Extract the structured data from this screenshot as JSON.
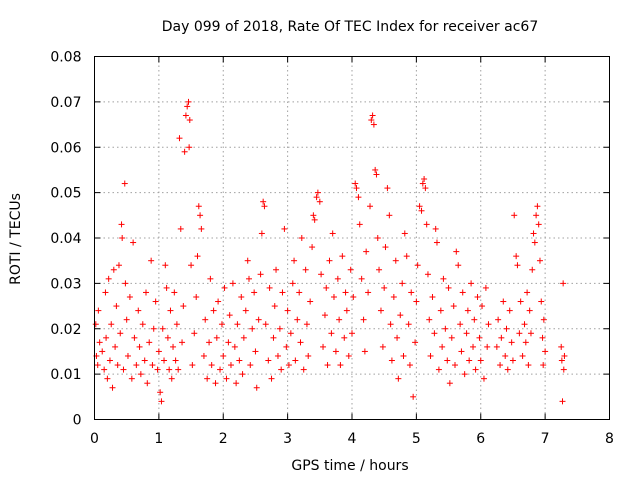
{
  "chart_data": {
    "type": "scatter",
    "title": "Day 099 of 2018, Rate Of TEC Index for receiver ac67",
    "xlabel": "GPS time / hours",
    "ylabel": "ROTI / TECUs",
    "xlim": [
      0,
      8
    ],
    "ylim": [
      0,
      0.08
    ],
    "xticks": [
      "0",
      "1",
      "2",
      "3",
      "4",
      "5",
      "6",
      "7",
      "8"
    ],
    "yticks": [
      "0",
      "0.01",
      "0.02",
      "0.03",
      "0.04",
      "0.05",
      "0.06",
      "0.07",
      "0.08"
    ],
    "grid": true,
    "marker": "+",
    "color": "#ff0000",
    "series": [
      {
        "name": "ROTI",
        "points": [
          [
            0.02,
            0.021
          ],
          [
            0.03,
            0.014
          ],
          [
            0.05,
            0.012
          ],
          [
            0.06,
            0.024
          ],
          [
            0.08,
            0.017
          ],
          [
            0.12,
            0.015
          ],
          [
            0.15,
            0.011
          ],
          [
            0.17,
            0.028
          ],
          [
            0.18,
            0.018
          ],
          [
            0.2,
            0.009
          ],
          [
            0.22,
            0.031
          ],
          [
            0.24,
            0.013
          ],
          [
            0.26,
            0.021
          ],
          [
            0.28,
            0.007
          ],
          [
            0.3,
            0.033
          ],
          [
            0.32,
            0.016
          ],
          [
            0.34,
            0.025
          ],
          [
            0.36,
            0.012
          ],
          [
            0.38,
            0.034
          ],
          [
            0.4,
            0.019
          ],
          [
            0.42,
            0.043
          ],
          [
            0.43,
            0.04
          ],
          [
            0.45,
            0.011
          ],
          [
            0.47,
            0.052
          ],
          [
            0.48,
            0.03
          ],
          [
            0.5,
            0.022
          ],
          [
            0.52,
            0.014
          ],
          [
            0.55,
            0.027
          ],
          [
            0.58,
            0.009
          ],
          [
            0.6,
            0.039
          ],
          [
            0.62,
            0.018
          ],
          [
            0.65,
            0.012
          ],
          [
            0.68,
            0.024
          ],
          [
            0.7,
            0.016
          ],
          [
            0.72,
            0.01
          ],
          [
            0.75,
            0.021
          ],
          [
            0.78,
            0.013
          ],
          [
            0.8,
            0.028
          ],
          [
            0.82,
            0.008
          ],
          [
            0.85,
            0.017
          ],
          [
            0.88,
            0.035
          ],
          [
            0.9,
            0.012
          ],
          [
            0.92,
            0.02
          ],
          [
            0.95,
            0.026
          ],
          [
            0.98,
            0.011
          ],
          [
            1.0,
            0.015
          ],
          [
            1.02,
            0.006
          ],
          [
            1.04,
            0.004
          ],
          [
            1.06,
            0.02
          ],
          [
            1.08,
            0.013
          ],
          [
            1.1,
            0.034
          ],
          [
            1.12,
            0.029
          ],
          [
            1.14,
            0.018
          ],
          [
            1.16,
            0.011
          ],
          [
            1.18,
            0.024
          ],
          [
            1.2,
            0.009
          ],
          [
            1.22,
            0.016
          ],
          [
            1.24,
            0.028
          ],
          [
            1.26,
            0.013
          ],
          [
            1.28,
            0.021
          ],
          [
            1.3,
            0.011
          ],
          [
            1.32,
            0.062
          ],
          [
            1.34,
            0.042
          ],
          [
            1.36,
            0.017
          ],
          [
            1.38,
            0.025
          ],
          [
            1.4,
            0.059
          ],
          [
            1.42,
            0.067
          ],
          [
            1.44,
            0.069
          ],
          [
            1.46,
            0.07
          ],
          [
            1.47,
            0.06
          ],
          [
            1.48,
            0.066
          ],
          [
            1.5,
            0.034
          ],
          [
            1.52,
            0.012
          ],
          [
            1.55,
            0.019
          ],
          [
            1.58,
            0.027
          ],
          [
            1.6,
            0.036
          ],
          [
            1.62,
            0.047
          ],
          [
            1.64,
            0.045
          ],
          [
            1.66,
            0.042
          ],
          [
            1.7,
            0.014
          ],
          [
            1.72,
            0.022
          ],
          [
            1.75,
            0.009
          ],
          [
            1.78,
            0.017
          ],
          [
            1.8,
            0.031
          ],
          [
            1.82,
            0.012
          ],
          [
            1.85,
            0.024
          ],
          [
            1.88,
            0.008
          ],
          [
            1.9,
            0.018
          ],
          [
            1.92,
            0.026
          ],
          [
            1.95,
            0.011
          ],
          [
            1.98,
            0.021
          ],
          [
            2.0,
            0.014
          ],
          [
            2.02,
            0.029
          ],
          [
            2.05,
            0.009
          ],
          [
            2.08,
            0.017
          ],
          [
            2.1,
            0.023
          ],
          [
            2.12,
            0.012
          ],
          [
            2.15,
            0.03
          ],
          [
            2.18,
            0.016
          ],
          [
            2.2,
            0.008
          ],
          [
            2.22,
            0.021
          ],
          [
            2.25,
            0.013
          ],
          [
            2.28,
            0.027
          ],
          [
            2.3,
            0.01
          ],
          [
            2.32,
            0.018
          ],
          [
            2.35,
            0.024
          ],
          [
            2.38,
            0.035
          ],
          [
            2.4,
            0.031
          ],
          [
            2.42,
            0.012
          ],
          [
            2.45,
            0.02
          ],
          [
            2.48,
            0.028
          ],
          [
            2.5,
            0.015
          ],
          [
            2.52,
            0.007
          ],
          [
            2.55,
            0.022
          ],
          [
            2.58,
            0.032
          ],
          [
            2.6,
            0.041
          ],
          [
            2.62,
            0.048
          ],
          [
            2.64,
            0.047
          ],
          [
            2.66,
            0.021
          ],
          [
            2.7,
            0.013
          ],
          [
            2.72,
            0.029
          ],
          [
            2.75,
            0.009
          ],
          [
            2.78,
            0.018
          ],
          [
            2.8,
            0.025
          ],
          [
            2.82,
            0.033
          ],
          [
            2.85,
            0.014
          ],
          [
            2.88,
            0.02
          ],
          [
            2.9,
            0.011
          ],
          [
            2.92,
            0.028
          ],
          [
            2.95,
            0.042
          ],
          [
            2.98,
            0.016
          ],
          [
            3.0,
            0.024
          ],
          [
            3.02,
            0.012
          ],
          [
            3.05,
            0.019
          ],
          [
            3.08,
            0.03
          ],
          [
            3.1,
            0.035
          ],
          [
            3.12,
            0.013
          ],
          [
            3.15,
            0.022
          ],
          [
            3.18,
            0.028
          ],
          [
            3.2,
            0.017
          ],
          [
            3.22,
            0.04
          ],
          [
            3.25,
            0.011
          ],
          [
            3.28,
            0.033
          ],
          [
            3.3,
            0.021
          ],
          [
            3.32,
            0.014
          ],
          [
            3.35,
            0.026
          ],
          [
            3.38,
            0.038
          ],
          [
            3.4,
            0.045
          ],
          [
            3.42,
            0.044
          ],
          [
            3.45,
            0.049
          ],
          [
            3.47,
            0.05
          ],
          [
            3.5,
            0.048
          ],
          [
            3.52,
            0.032
          ],
          [
            3.55,
            0.016
          ],
          [
            3.58,
            0.023
          ],
          [
            3.6,
            0.029
          ],
          [
            3.62,
            0.012
          ],
          [
            3.65,
            0.035
          ],
          [
            3.68,
            0.019
          ],
          [
            3.7,
            0.041
          ],
          [
            3.72,
            0.027
          ],
          [
            3.75,
            0.015
          ],
          [
            3.78,
            0.031
          ],
          [
            3.8,
            0.022
          ],
          [
            3.82,
            0.012
          ],
          [
            3.85,
            0.036
          ],
          [
            3.88,
            0.018
          ],
          [
            3.9,
            0.028
          ],
          [
            3.92,
            0.024
          ],
          [
            3.95,
            0.014
          ],
          [
            3.98,
            0.033
          ],
          [
            4.0,
            0.019
          ],
          [
            4.02,
            0.027
          ],
          [
            4.05,
            0.052
          ],
          [
            4.07,
            0.051
          ],
          [
            4.1,
            0.049
          ],
          [
            4.12,
            0.043
          ],
          [
            4.15,
            0.031
          ],
          [
            4.18,
            0.022
          ],
          [
            4.2,
            0.015
          ],
          [
            4.22,
            0.037
          ],
          [
            4.25,
            0.028
          ],
          [
            4.28,
            0.047
          ],
          [
            4.3,
            0.066
          ],
          [
            4.32,
            0.067
          ],
          [
            4.34,
            0.065
          ],
          [
            4.36,
            0.055
          ],
          [
            4.38,
            0.054
          ],
          [
            4.4,
            0.04
          ],
          [
            4.42,
            0.033
          ],
          [
            4.45,
            0.024
          ],
          [
            4.48,
            0.016
          ],
          [
            4.5,
            0.029
          ],
          [
            4.52,
            0.038
          ],
          [
            4.55,
            0.051
          ],
          [
            4.58,
            0.045
          ],
          [
            4.6,
            0.021
          ],
          [
            4.62,
            0.013
          ],
          [
            4.65,
            0.027
          ],
          [
            4.68,
            0.035
          ],
          [
            4.7,
            0.018
          ],
          [
            4.72,
            0.009
          ],
          [
            4.75,
            0.023
          ],
          [
            4.78,
            0.03
          ],
          [
            4.8,
            0.014
          ],
          [
            4.82,
            0.041
          ],
          [
            4.85,
            0.036
          ],
          [
            4.88,
            0.021
          ],
          [
            4.9,
            0.012
          ],
          [
            4.92,
            0.028
          ],
          [
            4.95,
            0.005
          ],
          [
            4.98,
            0.017
          ],
          [
            5.0,
            0.026
          ],
          [
            5.02,
            0.034
          ],
          [
            5.05,
            0.047
          ],
          [
            5.08,
            0.046
          ],
          [
            5.1,
            0.052
          ],
          [
            5.12,
            0.053
          ],
          [
            5.14,
            0.051
          ],
          [
            5.16,
            0.043
          ],
          [
            5.18,
            0.032
          ],
          [
            5.2,
            0.022
          ],
          [
            5.22,
            0.014
          ],
          [
            5.25,
            0.027
          ],
          [
            5.28,
            0.019
          ],
          [
            5.3,
            0.042
          ],
          [
            5.32,
            0.039
          ],
          [
            5.35,
            0.011
          ],
          [
            5.38,
            0.024
          ],
          [
            5.4,
            0.016
          ],
          [
            5.42,
            0.031
          ],
          [
            5.45,
            0.02
          ],
          [
            5.48,
            0.013
          ],
          [
            5.5,
            0.029
          ],
          [
            5.52,
            0.008
          ],
          [
            5.55,
            0.018
          ],
          [
            5.58,
            0.025
          ],
          [
            5.6,
            0.012
          ],
          [
            5.62,
            0.037
          ],
          [
            5.65,
            0.034
          ],
          [
            5.68,
            0.021
          ],
          [
            5.7,
            0.015
          ],
          [
            5.72,
            0.028
          ],
          [
            5.75,
            0.01
          ],
          [
            5.78,
            0.019
          ],
          [
            5.8,
            0.024
          ],
          [
            5.82,
            0.013
          ],
          [
            5.85,
            0.03
          ],
          [
            5.88,
            0.016
          ],
          [
            5.9,
            0.022
          ],
          [
            5.92,
            0.011
          ],
          [
            5.95,
            0.027
          ],
          [
            5.98,
            0.018
          ],
          [
            6.0,
            0.013
          ],
          [
            6.02,
            0.025
          ],
          [
            6.05,
            0.009
          ],
          [
            6.08,
            0.029
          ],
          [
            6.1,
            0.016
          ],
          [
            6.12,
            0.021
          ],
          [
            6.25,
            0.016
          ],
          [
            6.27,
            0.022
          ],
          [
            6.3,
            0.012
          ],
          [
            6.32,
            0.018
          ],
          [
            6.35,
            0.026
          ],
          [
            6.38,
            0.014
          ],
          [
            6.4,
            0.02
          ],
          [
            6.42,
            0.011
          ],
          [
            6.45,
            0.024
          ],
          [
            6.48,
            0.017
          ],
          [
            6.5,
            0.013
          ],
          [
            6.52,
            0.045
          ],
          [
            6.55,
            0.036
          ],
          [
            6.57,
            0.034
          ],
          [
            6.6,
            0.019
          ],
          [
            6.62,
            0.026
          ],
          [
            6.65,
            0.014
          ],
          [
            6.68,
            0.021
          ],
          [
            6.7,
            0.017
          ],
          [
            6.72,
            0.028
          ],
          [
            6.74,
            0.012
          ],
          [
            6.76,
            0.024
          ],
          [
            6.78,
            0.019
          ],
          [
            6.8,
            0.033
          ],
          [
            6.82,
            0.041
          ],
          [
            6.84,
            0.039
          ],
          [
            6.86,
            0.045
          ],
          [
            6.88,
            0.047
          ],
          [
            6.9,
            0.043
          ],
          [
            6.92,
            0.035
          ],
          [
            6.94,
            0.026
          ],
          [
            6.96,
            0.018
          ],
          [
            6.97,
            0.012
          ],
          [
            6.98,
            0.022
          ],
          [
            7.0,
            0.015
          ],
          [
            7.25,
            0.016
          ],
          [
            7.26,
            0.013
          ],
          [
            7.27,
            0.004
          ],
          [
            7.28,
            0.03
          ],
          [
            7.29,
            0.011
          ],
          [
            7.3,
            0.014
          ]
        ]
      }
    ]
  }
}
